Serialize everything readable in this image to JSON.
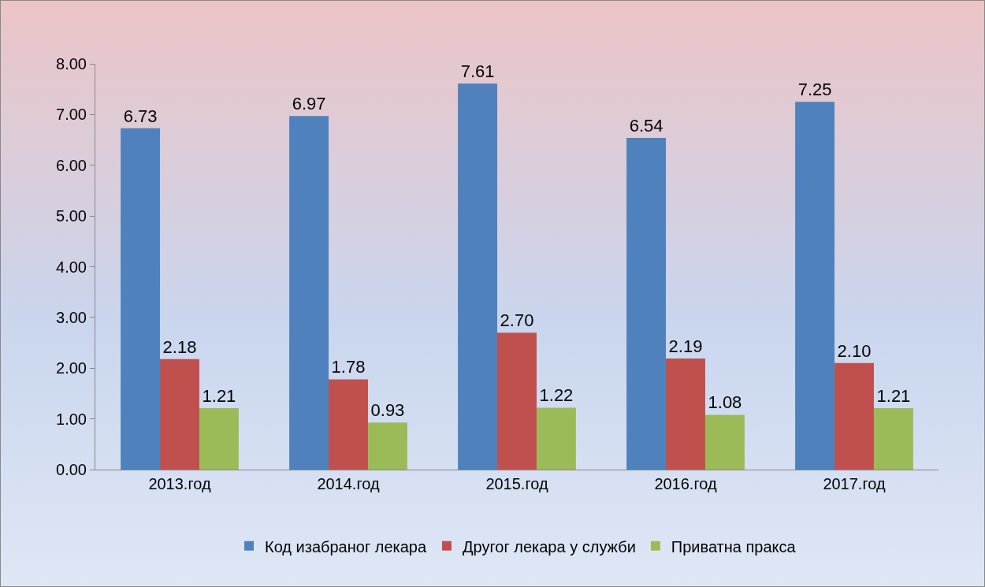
{
  "chart_data": {
    "type": "bar",
    "categories": [
      "2013.год",
      "2014.год",
      "2015.год",
      "2016.год",
      "2017.год"
    ],
    "series": [
      {
        "name": "Код изабраног лекара",
        "color": "#4f81bd",
        "values": [
          6.73,
          6.97,
          7.61,
          6.54,
          7.25
        ],
        "value_labels": [
          "6.73",
          "6.97",
          "7.61",
          "6.54",
          "7.25"
        ]
      },
      {
        "name": "Другог лекара у служби",
        "color": "#c0504d",
        "values": [
          2.18,
          1.78,
          2.7,
          2.19,
          2.1
        ],
        "value_labels": [
          "2.18",
          "1.78",
          "2.70",
          "2.19",
          "2.10"
        ]
      },
      {
        "name": "Приватна пракса",
        "color": "#9bbb59",
        "values": [
          1.21,
          0.93,
          1.22,
          1.08,
          1.21
        ],
        "value_labels": [
          "1.21",
          "0.93",
          "1.22",
          "1.08",
          "1.21"
        ]
      }
    ],
    "ylim": [
      0,
      8
    ],
    "yticks": [
      {
        "value": 0,
        "label": "0.00"
      },
      {
        "value": 1,
        "label": "1.00"
      },
      {
        "value": 2,
        "label": "2.00"
      },
      {
        "value": 3,
        "label": "3.00"
      },
      {
        "value": 4,
        "label": "4.00"
      },
      {
        "value": 5,
        "label": "5.00"
      },
      {
        "value": 6,
        "label": "6.00"
      },
      {
        "value": 7,
        "label": "7.00"
      },
      {
        "value": 8,
        "label": "8.00"
      }
    ],
    "grid": false,
    "legend": "bottom"
  }
}
